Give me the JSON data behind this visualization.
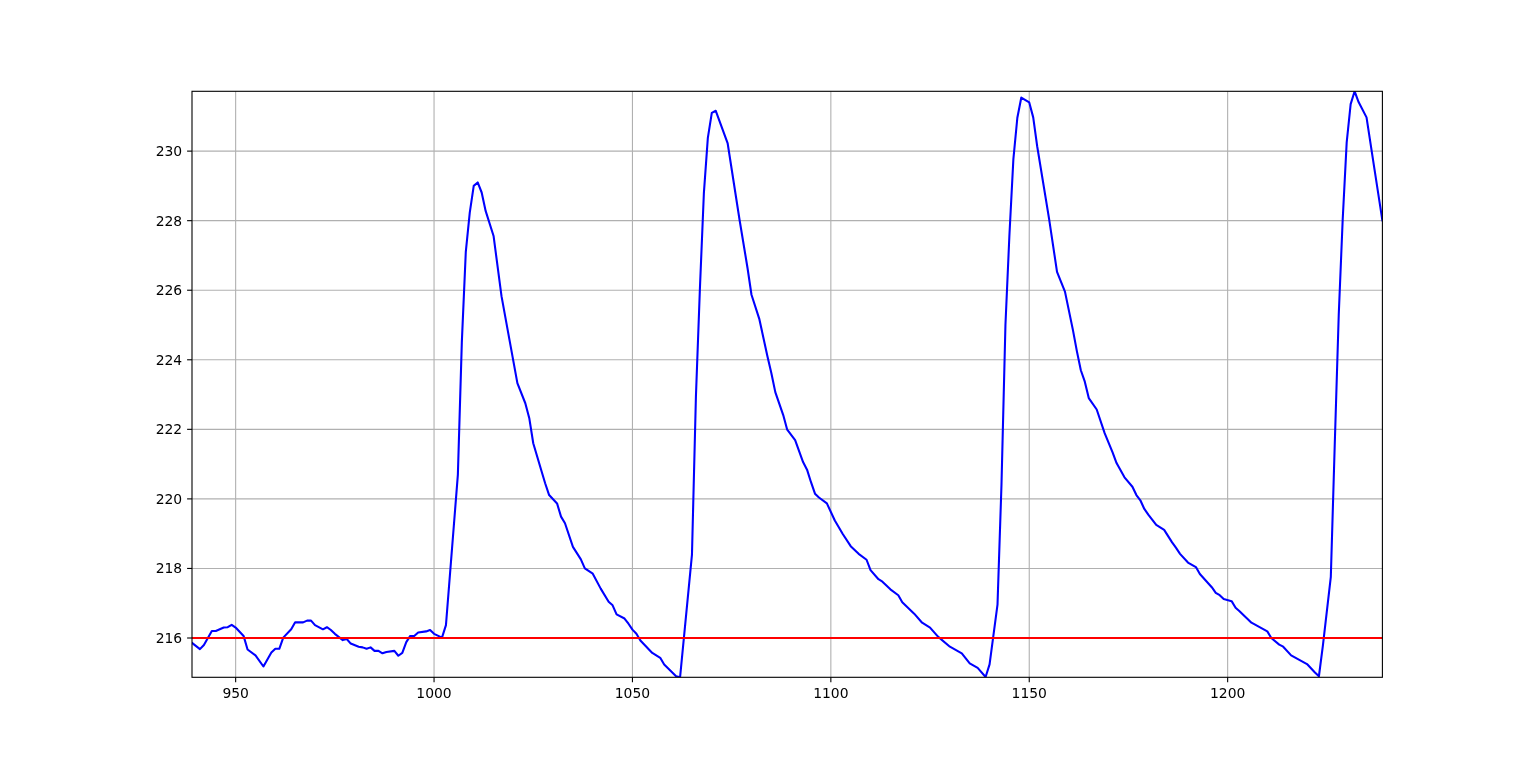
{
  "chart_data": {
    "type": "line",
    "x": [
      939,
      941,
      942,
      944,
      945,
      947,
      948,
      949,
      950,
      952,
      953,
      955,
      957,
      959,
      960,
      961,
      962,
      964,
      965,
      967,
      968,
      969,
      970,
      972,
      973,
      974,
      975,
      977,
      978,
      979,
      981,
      982,
      983,
      984,
      985,
      986,
      987,
      988,
      990,
      991,
      992,
      993,
      994,
      995,
      996,
      998,
      999,
      1000,
      1002,
      1003,
      1006,
      1007,
      1008,
      1009,
      1010,
      1011,
      1012,
      1013,
      1015,
      1017,
      1019,
      1021,
      1023,
      1024,
      1025,
      1027,
      1028,
      1029,
      1031,
      1032,
      1033,
      1035,
      1037,
      1038,
      1040,
      1042,
      1044,
      1045,
      1046,
      1048,
      1049,
      1050,
      1051,
      1052,
      1055,
      1057,
      1058,
      1061,
      1062,
      1065,
      1066,
      1067,
      1068,
      1069,
      1070,
      1071,
      1074,
      1077,
      1079,
      1080,
      1082,
      1084,
      1085,
      1086,
      1088,
      1089,
      1091,
      1093,
      1094,
      1095,
      1096,
      1097,
      1099,
      1101,
      1103,
      1105,
      1107,
      1109,
      1110,
      1112,
      1113,
      1115,
      1117,
      1118,
      1121,
      1123,
      1125,
      1127,
      1130,
      1133,
      1135,
      1137,
      1139,
      1140,
      1142,
      1143,
      1144,
      1145,
      1146,
      1147,
      1148,
      1150,
      1151,
      1152,
      1155,
      1157,
      1159,
      1161,
      1162,
      1163,
      1164,
      1165,
      1167,
      1169,
      1171,
      1172,
      1174,
      1176,
      1177,
      1178,
      1179,
      1180,
      1182,
      1184,
      1186,
      1187,
      1188,
      1190,
      1192,
      1193,
      1196,
      1197,
      1198,
      1199,
      1201,
      1202,
      1203,
      1206,
      1210,
      1211,
      1213,
      1214,
      1216,
      1220,
      1222,
      1223,
      1224,
      1226,
      1227,
      1228,
      1229,
      1230,
      1231,
      1232,
      1233,
      1235,
      1237,
      1239
    ],
    "series": [
      {
        "color": "#0000ff",
        "values": [
          215.86,
          215.68,
          215.8,
          216.2,
          216.2,
          216.3,
          216.31,
          216.38,
          216.3,
          216.06,
          215.67,
          215.5,
          215.18,
          215.58,
          215.69,
          215.69,
          216.01,
          216.25,
          216.45,
          216.45,
          216.5,
          216.5,
          216.37,
          216.25,
          216.31,
          216.23,
          216.12,
          215.94,
          215.97,
          215.84,
          215.75,
          215.73,
          215.69,
          215.73,
          215.63,
          215.63,
          215.56,
          215.6,
          215.63,
          215.49,
          215.57,
          215.88,
          216.06,
          216.06,
          216.16,
          216.19,
          216.23,
          216.12,
          216.01,
          216.37,
          220.69,
          224.5,
          227.1,
          228.23,
          229.0,
          229.1,
          228.81,
          228.28,
          227.56,
          225.83,
          224.58,
          223.33,
          222.75,
          222.32,
          221.6,
          220.83,
          220.45,
          220.11,
          219.87,
          219.49,
          219.3,
          218.62,
          218.26,
          218.0,
          217.85,
          217.42,
          217.04,
          216.94,
          216.68,
          216.56,
          216.41,
          216.24,
          216.12,
          215.93,
          215.57,
          215.43,
          215.24,
          214.9,
          214.87,
          218.4,
          222.96,
          226.04,
          228.79,
          230.38,
          231.1,
          231.16,
          230.22,
          228.02,
          226.64,
          225.87,
          225.16,
          224.11,
          223.62,
          223.07,
          222.41,
          221.99,
          221.69,
          221.06,
          220.84,
          220.48,
          220.15,
          220.04,
          219.87,
          219.38,
          218.99,
          218.64,
          218.42,
          218.25,
          217.95,
          217.69,
          217.62,
          217.4,
          217.23,
          217.03,
          216.7,
          216.44,
          216.3,
          216.04,
          215.75,
          215.56,
          215.27,
          215.14,
          214.88,
          215.24,
          216.96,
          220.4,
          225.0,
          227.58,
          229.77,
          230.96,
          231.54,
          231.4,
          230.97,
          230.14,
          228.05,
          226.53,
          225.96,
          224.86,
          224.25,
          223.7,
          223.37,
          222.9,
          222.57,
          221.89,
          221.34,
          221.03,
          220.62,
          220.35,
          220.11,
          219.96,
          219.71,
          219.55,
          219.25,
          219.11,
          218.75,
          218.59,
          218.42,
          218.17,
          218.04,
          217.84,
          217.46,
          217.3,
          217.23,
          217.12,
          217.06,
          216.87,
          216.77,
          216.44,
          216.19,
          216.0,
          215.81,
          215.75,
          215.5,
          215.25,
          215.01,
          214.9,
          215.78,
          217.76,
          221.6,
          225.3,
          228.05,
          230.25,
          231.35,
          231.72,
          231.41,
          230.97,
          229.48,
          228.0
        ]
      }
    ],
    "xlim": [
      939,
      1239
    ],
    "xticks": [
      950,
      1000,
      1050,
      1100,
      1150,
      1200
    ],
    "ylim": [
      214.87,
      231.72
    ],
    "yticks": [
      216,
      218,
      220,
      222,
      224,
      226,
      228,
      230
    ],
    "grid": true,
    "ref_lines": [
      {
        "axis": "y",
        "value": 216,
        "color": "#ff0000"
      }
    ]
  }
}
